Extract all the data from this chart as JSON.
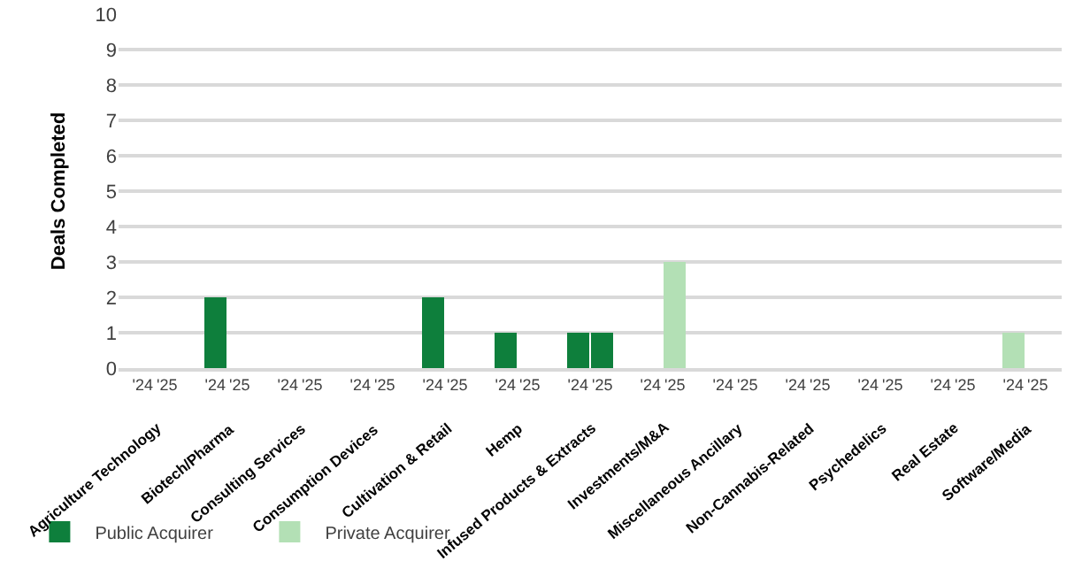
{
  "chart_data": {
    "type": "bar",
    "stacked": true,
    "ylabel": "Deals Completed",
    "categories": [
      "'24",
      "'25",
      "'24",
      "'25",
      "'24",
      "'25",
      "'24",
      "'25",
      "'24",
      "'25",
      "'24",
      "'25",
      "'24",
      "'25",
      "'24",
      "'25",
      "'24",
      "'25",
      "'24",
      "'25",
      "'24",
      "'25",
      "'24",
      "'25",
      "'24",
      "'25"
    ],
    "series": [
      {
        "name": "Public Acquirer",
        "color": "#0e7f3c",
        "values": [
          0,
          0,
          2,
          0,
          0,
          0,
          0,
          0,
          2,
          0,
          1,
          0,
          1,
          1,
          0,
          0,
          0,
          0,
          0,
          0,
          0,
          0,
          0,
          0,
          0,
          0
        ]
      },
      {
        "name": "Private Acquirer",
        "color": "#b3e0b5",
        "values": [
          0,
          0,
          0,
          0,
          0,
          0,
          0,
          0,
          0,
          0,
          0,
          0,
          0,
          0,
          0,
          3,
          0,
          0,
          0,
          0,
          0,
          0,
          0,
          0,
          1,
          0
        ]
      }
    ],
    "annotations": [
      "Agriculture Technology",
      "Biotech/Pharma",
      "Consulting Services",
      "Consumption Devices",
      "Cultivation & Retail",
      "Hemp",
      "Infused Products & Extracts",
      "Investments/M&A",
      "Miscellaneous Ancillary",
      "Non-Cannabis-Related",
      "Psychedelics",
      "Real Estate",
      "Software/Media"
    ],
    "ylim": [
      0,
      10
    ],
    "yticks": [
      0,
      1,
      2,
      3,
      4,
      5,
      6,
      7,
      8,
      9,
      10
    ],
    "grid": "y",
    "legend": "bottom left"
  }
}
